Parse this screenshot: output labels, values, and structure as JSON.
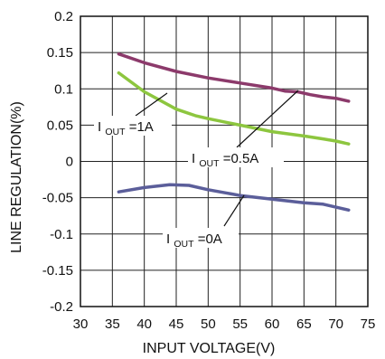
{
  "chart_data": {
    "type": "line",
    "title": "",
    "xlabel": "INPUT VOLTAGE(V)",
    "ylabel": "LINE REGULATION(%)",
    "xlim": [
      30,
      75
    ],
    "ylim": [
      -0.2,
      0.2
    ],
    "grid": true,
    "x_ticks": [
      30,
      35,
      40,
      45,
      50,
      55,
      60,
      65,
      70,
      75
    ],
    "x_tick_labels": [
      "30",
      "35",
      "40",
      "45",
      "50",
      "55",
      "60",
      "65",
      "70",
      "75"
    ],
    "y_ticks": [
      0.2,
      0.15,
      0.1,
      0.05,
      0,
      -0.05,
      -0.1,
      -0.15,
      -0.2
    ],
    "y_tick_labels": [
      "0.2",
      "0.15",
      "0.1",
      "0.05",
      "0",
      "-0.05",
      "-0.1",
      "-0.15",
      "-0.2"
    ],
    "series": [
      {
        "label_main": "I",
        "label_sub": "OUT",
        "label_value": "=0.5A",
        "color": "#8c3a6b",
        "x": [
          36,
          40,
          45,
          50,
          55,
          60,
          62,
          64,
          66,
          68,
          70,
          72
        ],
        "y": [
          0.148,
          0.136,
          0.124,
          0.115,
          0.108,
          0.101,
          0.097,
          0.096,
          0.092,
          0.089,
          0.087,
          0.083
        ]
      },
      {
        "label_main": "I",
        "label_sub": "OUT",
        "label_value": "=1A",
        "color": "#8dc63f",
        "x": [
          36,
          40,
          45,
          48,
          50,
          55,
          60,
          65,
          68,
          70,
          72
        ],
        "y": [
          0.122,
          0.096,
          0.072,
          0.063,
          0.059,
          0.05,
          0.041,
          0.035,
          0.031,
          0.028,
          0.024
        ]
      },
      {
        "label_main": "I",
        "label_sub": "OUT",
        "label_value": "=0A",
        "color": "#5b5e9a",
        "x": [
          36,
          40,
          44,
          47,
          50,
          55,
          60,
          65,
          68,
          70,
          72
        ],
        "y": [
          -0.042,
          -0.036,
          -0.032,
          -0.033,
          -0.039,
          -0.047,
          -0.052,
          -0.057,
          -0.059,
          -0.063,
          -0.067
        ]
      }
    ]
  }
}
